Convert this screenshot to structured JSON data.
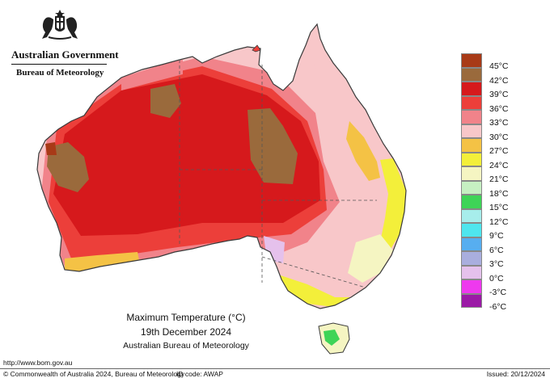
{
  "header": {
    "government": "Australian Government",
    "bureau": "Bureau of Meteorology"
  },
  "caption": {
    "title": "Maximum Temperature (°C)",
    "date": "19th December 2024",
    "source": "Australian Bureau of Meteorology"
  },
  "legend": [
    {
      "label": "45°C",
      "color": "#a83a17"
    },
    {
      "label": "42°C",
      "color": "#9a6a3c"
    },
    {
      "label": "39°C",
      "color": "#d6191c"
    },
    {
      "label": "36°C",
      "color": "#ec3f3a"
    },
    {
      "label": "33°C",
      "color": "#f1838a"
    },
    {
      "label": "30°C",
      "color": "#f8c7c9"
    },
    {
      "label": "27°C",
      "color": "#f4c245"
    },
    {
      "label": "24°C",
      "color": "#f3ef3a"
    },
    {
      "label": "21°C",
      "color": "#f5f5c2"
    },
    {
      "label": "18°C",
      "color": "#c6f0c2"
    },
    {
      "label": "15°C",
      "color": "#3ed457"
    },
    {
      "label": "12°C",
      "color": "#a7edeb"
    },
    {
      "label": "9°C",
      "color": "#4fe6ee"
    },
    {
      "label": "6°C",
      "color": "#57aef0"
    },
    {
      "label": "3°C",
      "color": "#a9aede"
    },
    {
      "label": "0°C",
      "color": "#e5c1ec"
    },
    {
      "label": "-3°C",
      "color": "#ee39ee"
    },
    {
      "label": "-6°C",
      "color": "#9b1aa6"
    }
  ],
  "footer": {
    "url": "http://www.bom.gov.au",
    "copyright": "© Commonwealth of Australia 2024, Bureau of Meteorology",
    "id_code": "ID code: AWAP",
    "issued": "Issued: 20/12/2024"
  },
  "map_colors": {
    "ocean": "#ffffff",
    "outline": "#3a3a3a"
  }
}
